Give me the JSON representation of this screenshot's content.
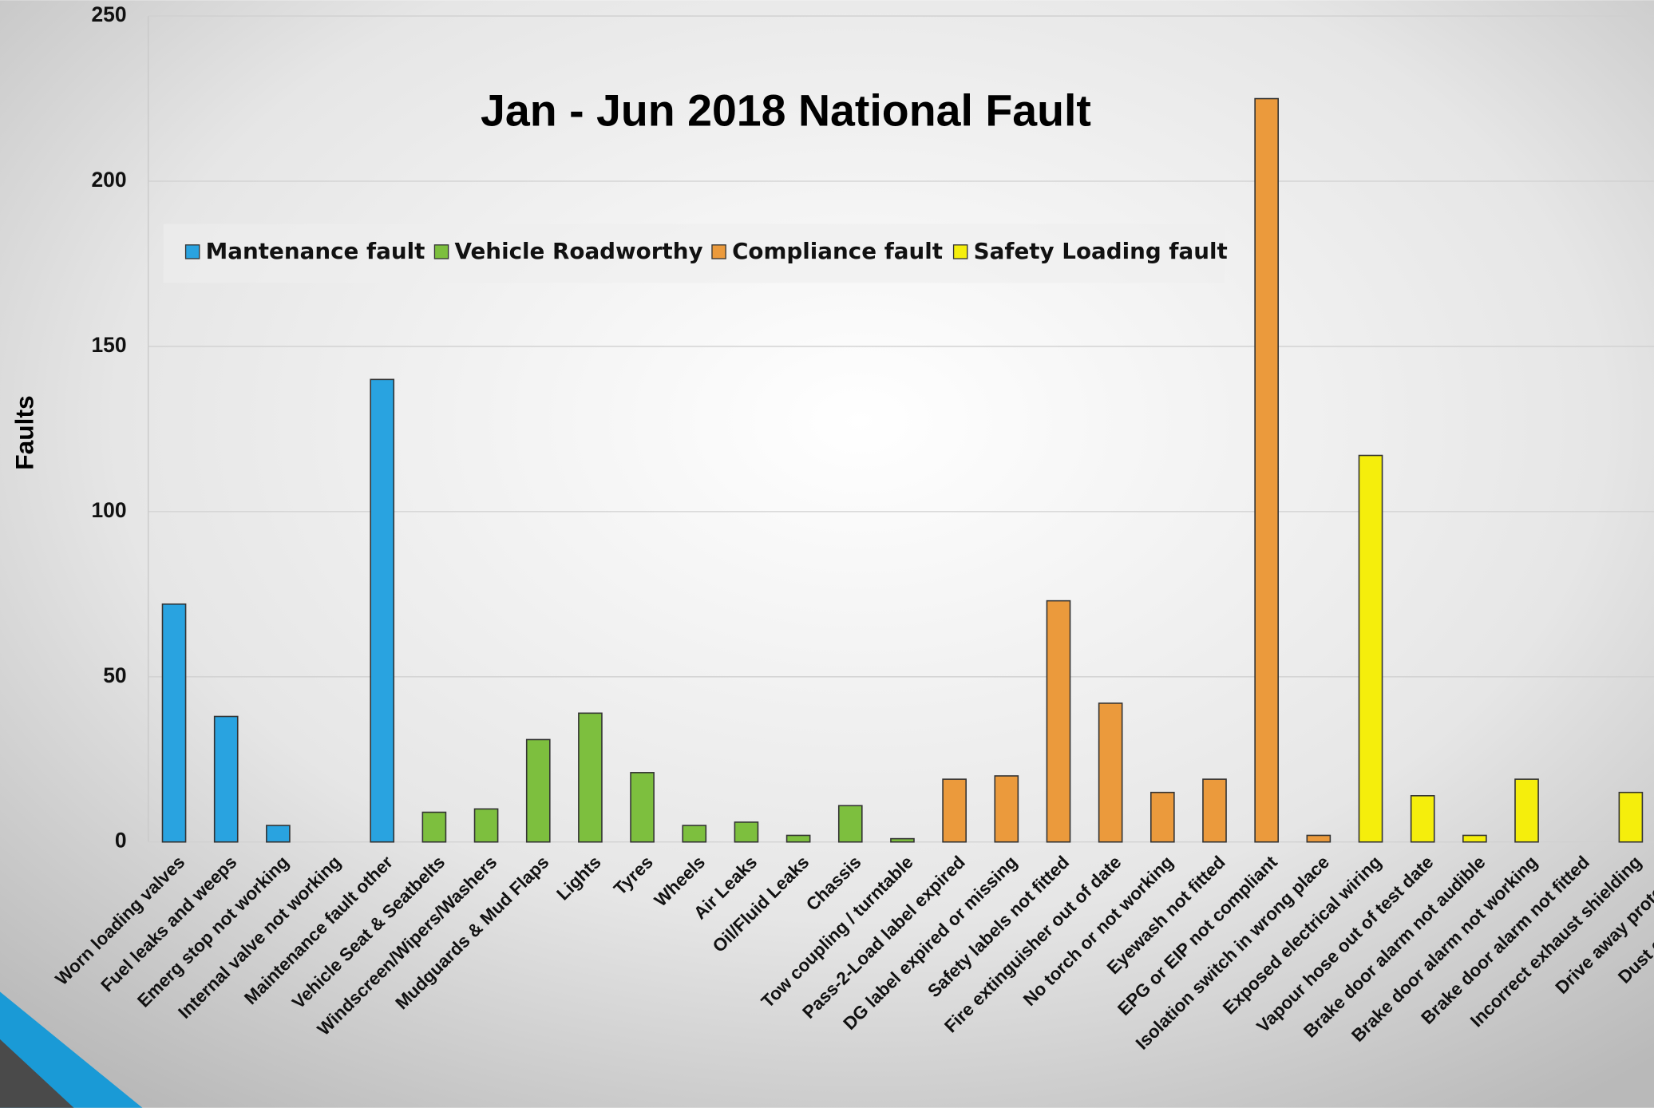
{
  "chart_data": {
    "type": "bar",
    "title": "Jan - Jun 2018 National Fault",
    "y_label": "Faults",
    "categories": [
      "Worn loading valves",
      "Fuel leaks and weeps",
      "Emerg stop not working",
      "Internal valve not working",
      "Maintenance fault other",
      "Vehicle Seat & Seatbelts",
      "Windscreen/Wipers/Washers",
      "Mudguards & Mud Flaps",
      "Lights",
      "Tyres",
      "Wheels",
      "Air Leaks",
      "Oil/Fluid Leaks",
      "Chassis",
      "Tow coupling / turntable",
      "Pass-2-Load label expired",
      "DG label expired or missing",
      "Safety labels not fitted",
      "Fire extinguisher out of date",
      "No torch or not working",
      "Eyewash not fitted",
      "EPG or EIP not compliant",
      "Isolation switch in wrong place",
      "Exposed electrical wiring",
      "Vapour hose out of test date",
      "Brake door alarm not audible",
      "Brake door alarm not working",
      "Brake door alarm not fitted",
      "Incorrect exhaust shielding",
      "Drive away protection",
      "Dust cap missing or"
    ],
    "series": [
      {
        "name": "Mantenance fault",
        "color": "#29a3e0",
        "values": [
          72,
          38,
          5,
          0,
          140,
          null,
          null,
          null,
          null,
          null,
          null,
          null,
          null,
          null,
          null,
          null,
          null,
          null,
          null,
          null,
          null,
          null,
          null,
          null,
          null,
          null,
          null,
          null,
          null,
          null,
          null
        ]
      },
      {
        "name": "Vehicle Roadworthy",
        "color": "#7dbf3e",
        "values": [
          null,
          null,
          null,
          null,
          null,
          9,
          10,
          31,
          39,
          21,
          5,
          6,
          2,
          11,
          1,
          null,
          null,
          null,
          null,
          null,
          null,
          null,
          null,
          null,
          null,
          null,
          null,
          null,
          null,
          null,
          null
        ]
      },
      {
        "name": "Compliance fault",
        "color": "#eb9a3c",
        "values": [
          null,
          null,
          null,
          null,
          null,
          null,
          null,
          null,
          null,
          null,
          null,
          null,
          null,
          null,
          null,
          19,
          20,
          73,
          42,
          15,
          19,
          225,
          2,
          null,
          null,
          null,
          null,
          null,
          null,
          null,
          null
        ]
      },
      {
        "name": "Safety Loading fault",
        "color": "#f5ee0c",
        "values": [
          null,
          null,
          null,
          null,
          null,
          null,
          null,
          null,
          null,
          null,
          null,
          null,
          null,
          null,
          null,
          null,
          null,
          null,
          null,
          null,
          null,
          null,
          null,
          117,
          14,
          2,
          19,
          0,
          15,
          null,
          null
        ]
      }
    ],
    "ylim": [
      0,
      250
    ],
    "yticks": [
      0,
      50,
      100,
      150,
      200,
      250
    ],
    "grid": true
  }
}
